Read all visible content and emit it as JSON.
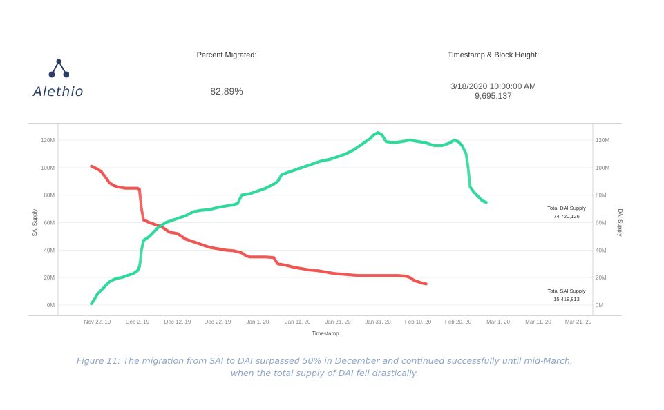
{
  "logo": {
    "text": "Alethio"
  },
  "kpis": {
    "percent_migrated_label": "Percent Migrated:",
    "percent_migrated_value": "82.89%",
    "timestamp_label": "Timestamp & Block Height:",
    "timestamp_value": "3/18/2020 10:00:00 AM",
    "block_height_value": "9,695,137"
  },
  "colors": {
    "sai": "#ef5350",
    "dai": "#2ed79a",
    "axis_text": "#888888"
  },
  "caption": {
    "line1": "Figure 11: The migration from SAI to DAI surpassed 50% in December and continued successfully until mid-March,",
    "line2": "when the total supply of DAI fell drastically."
  },
  "chart_data": {
    "type": "scatter",
    "xlabel": "Timestamp",
    "ylabel_left": "SAI Supply",
    "ylabel_right": "DAI Supply",
    "x_tick_labels": [
      "Nov 22, 19",
      "Dec 2, 19",
      "Dec 12, 19",
      "Dec 22, 19",
      "Jan 1, 20",
      "Jan 11, 20",
      "Jan 21, 20",
      "Jan 31, 20",
      "Feb 10, 20",
      "Feb 20, 20",
      "Mar 1, 20",
      "Mar 11, 20",
      "Mar 21, 20"
    ],
    "y_tick_labels": [
      "0M",
      "20M",
      "40M",
      "60M",
      "80M",
      "100M",
      "120M"
    ],
    "ylim": [
      0,
      130
    ],
    "x_unit": "days since Nov 22, 19 (tick every 10 days)",
    "grid": true,
    "series": [
      {
        "name": "Total SAI Supply",
        "color": "#ef5350",
        "points": [
          [
            -1.5,
            101
          ],
          [
            0,
            99
          ],
          [
            1,
            97
          ],
          [
            2,
            93
          ],
          [
            3,
            89
          ],
          [
            4,
            87
          ],
          [
            5,
            86
          ],
          [
            6,
            85.5
          ],
          [
            7,
            85
          ],
          [
            8,
            85
          ],
          [
            9,
            85
          ],
          [
            10,
            85
          ],
          [
            10.5,
            84
          ],
          [
            10.7,
            78
          ],
          [
            11,
            70
          ],
          [
            11.5,
            62
          ],
          [
            13,
            60
          ],
          [
            14,
            59
          ],
          [
            16,
            57
          ],
          [
            17,
            55
          ],
          [
            18,
            53
          ],
          [
            20,
            52
          ],
          [
            21,
            50
          ],
          [
            22,
            48
          ],
          [
            24,
            46
          ],
          [
            26,
            44
          ],
          [
            28,
            42
          ],
          [
            30,
            41
          ],
          [
            32,
            40
          ],
          [
            34,
            39.5
          ],
          [
            36,
            38
          ],
          [
            37,
            36
          ],
          [
            38,
            35
          ],
          [
            40,
            35
          ],
          [
            42,
            35
          ],
          [
            44,
            34.5
          ],
          [
            45,
            30
          ],
          [
            47,
            29
          ],
          [
            49,
            27.5
          ],
          [
            51,
            26.5
          ],
          [
            53,
            25.5
          ],
          [
            55,
            25
          ],
          [
            57,
            24
          ],
          [
            59,
            23
          ],
          [
            61,
            22.5
          ],
          [
            63,
            22
          ],
          [
            65,
            21.5
          ],
          [
            67,
            21.5
          ],
          [
            69,
            21.5
          ],
          [
            71,
            21.5
          ],
          [
            73,
            21.5
          ],
          [
            75,
            21.5
          ],
          [
            77,
            21
          ],
          [
            78,
            20
          ],
          [
            79,
            18
          ],
          [
            80,
            17
          ],
          [
            81,
            16
          ],
          [
            82,
            15.4
          ]
        ],
        "end_label": "Total SAI Supply",
        "end_value": "15,418,813"
      },
      {
        "name": "Total DAI Supply",
        "color": "#2ed79a",
        "points": [
          [
            -1.5,
            1
          ],
          [
            -1,
            3
          ],
          [
            0,
            8
          ],
          [
            1,
            11
          ],
          [
            2,
            14
          ],
          [
            3,
            17
          ],
          [
            4,
            18.5
          ],
          [
            5,
            19.5
          ],
          [
            6,
            20
          ],
          [
            7,
            21
          ],
          [
            8,
            22
          ],
          [
            9,
            23
          ],
          [
            10,
            25
          ],
          [
            10.5,
            28
          ],
          [
            10.7,
            32
          ],
          [
            11,
            40
          ],
          [
            11.5,
            47
          ],
          [
            12,
            48
          ],
          [
            13,
            50
          ],
          [
            14,
            53
          ],
          [
            15,
            56
          ],
          [
            16,
            58
          ],
          [
            17,
            60
          ],
          [
            18,
            61
          ],
          [
            20,
            63
          ],
          [
            22,
            65
          ],
          [
            24,
            68
          ],
          [
            26,
            69
          ],
          [
            28,
            69.5
          ],
          [
            30,
            71
          ],
          [
            32,
            72
          ],
          [
            34,
            73
          ],
          [
            35,
            74
          ],
          [
            36,
            80
          ],
          [
            38,
            81
          ],
          [
            40,
            83
          ],
          [
            42,
            85
          ],
          [
            44,
            88
          ],
          [
            45,
            90
          ],
          [
            46,
            95
          ],
          [
            48,
            97
          ],
          [
            50,
            99
          ],
          [
            52,
            101
          ],
          [
            54,
            103
          ],
          [
            56,
            105
          ],
          [
            58,
            106
          ],
          [
            60,
            108
          ],
          [
            62,
            110
          ],
          [
            64,
            113
          ],
          [
            66,
            117
          ],
          [
            68,
            121
          ],
          [
            69,
            124
          ],
          [
            70,
            125.5
          ],
          [
            71,
            124
          ],
          [
            72,
            119
          ],
          [
            74,
            118
          ],
          [
            76,
            119
          ],
          [
            78,
            120
          ],
          [
            80,
            119
          ],
          [
            82,
            118
          ],
          [
            84,
            116
          ],
          [
            86,
            116
          ],
          [
            88,
            118
          ],
          [
            89,
            120
          ],
          [
            90,
            119
          ],
          [
            91,
            116
          ],
          [
            92,
            110
          ],
          [
            92.5,
            100
          ],
          [
            93,
            86
          ],
          [
            94,
            82
          ],
          [
            95,
            79
          ],
          [
            96,
            76
          ],
          [
            97,
            74.7
          ]
        ],
        "end_label": "Total DAI Supply",
        "end_value": "74,720,126"
      }
    ]
  }
}
